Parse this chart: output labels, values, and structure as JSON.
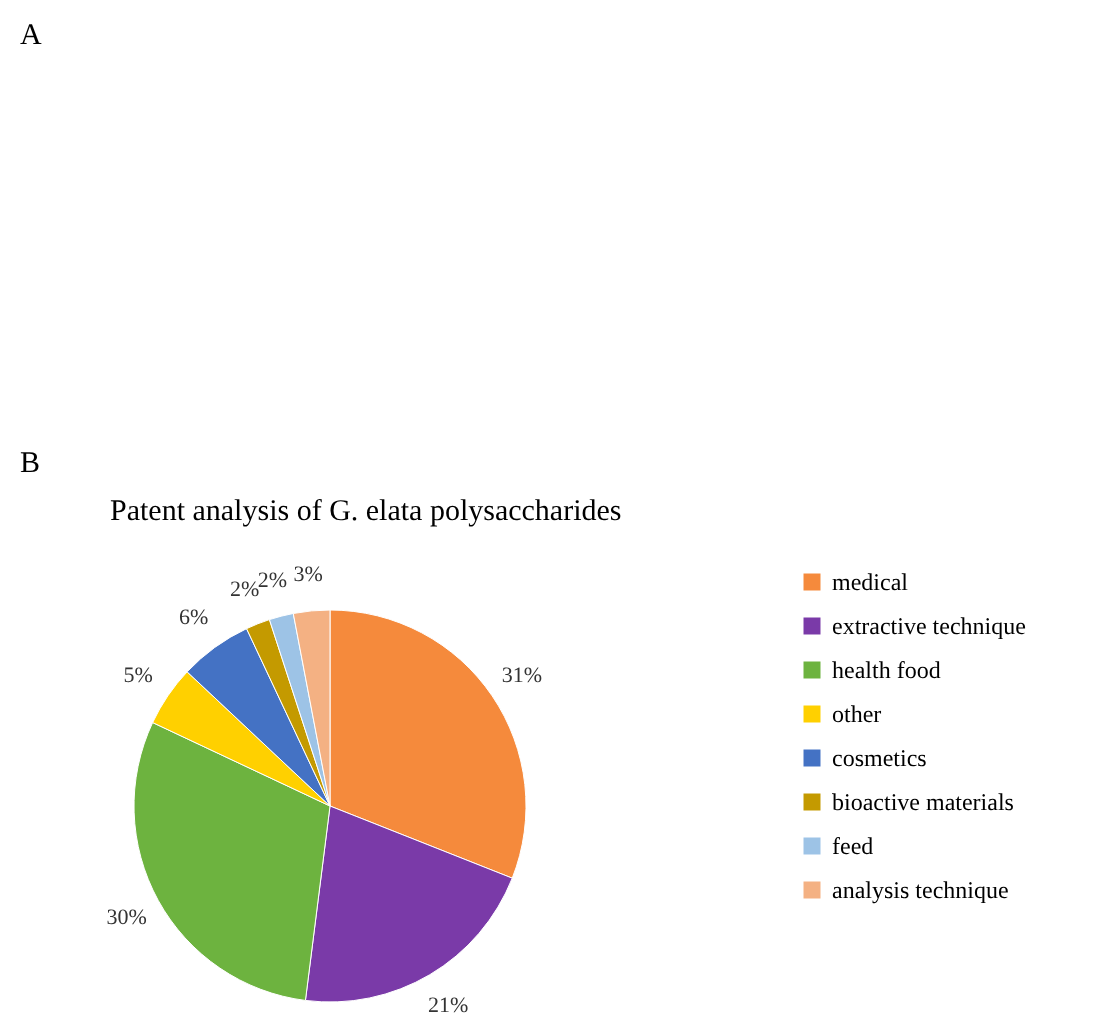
{
  "chart_data": {
    "type": "pie",
    "title": "Patent analysis of G. elata polysaccharides",
    "categories": [
      "medical",
      "extractive technique",
      "health food",
      "other",
      "cosmetics",
      "bioactive materials",
      "feed",
      "analysis technique"
    ],
    "values": [
      31,
      21,
      30,
      5,
      6,
      2,
      2,
      3
    ],
    "colors": [
      "#f58a3c",
      "#7a3aa8",
      "#6db33f",
      "#ffd000",
      "#4472c4",
      "#c49a00",
      "#9dc3e6",
      "#f4b183"
    ],
    "value_labels": [
      "31%",
      "21%",
      "30%",
      "5%",
      "6%",
      "2%",
      "2%",
      "3%"
    ],
    "legend": "right",
    "annotations": [
      "A",
      "B"
    ]
  }
}
